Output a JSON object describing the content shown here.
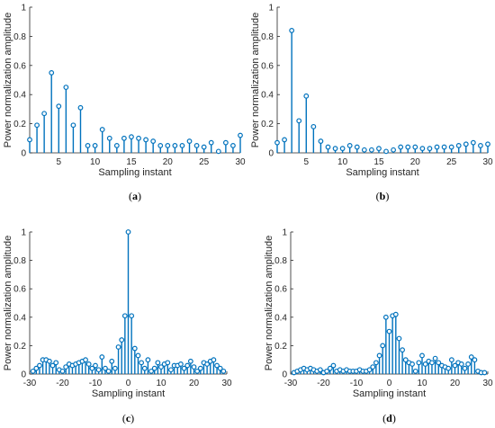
{
  "chart_data": [
    {
      "id": "a",
      "type": "stem",
      "caption": "(a)",
      "xlabel": "Sampling instant",
      "ylabel": "Power normalization amplitude",
      "xlim": [
        1,
        30
      ],
      "ylim": [
        0,
        1
      ],
      "xticks": [
        5,
        10,
        15,
        20,
        25,
        30
      ],
      "yticks": [
        0,
        0.2,
        0.4,
        0.6,
        0.8,
        1
      ],
      "ytick_labels": [
        "0",
        "0.2",
        "0.4",
        "0.6",
        "0.8",
        "1"
      ],
      "color": "#0072BD",
      "x": [
        1,
        2,
        3,
        4,
        5,
        6,
        7,
        8,
        9,
        10,
        11,
        12,
        13,
        14,
        15,
        16,
        17,
        18,
        19,
        20,
        21,
        22,
        23,
        24,
        25,
        26,
        27,
        28,
        29,
        30
      ],
      "y": [
        0.09,
        0.19,
        0.27,
        0.55,
        0.32,
        0.45,
        0.19,
        0.31,
        0.05,
        0.05,
        0.16,
        0.1,
        0.05,
        0.1,
        0.11,
        0.1,
        0.09,
        0.08,
        0.05,
        0.05,
        0.05,
        0.05,
        0.08,
        0.05,
        0.04,
        0.07,
        0.01,
        0.07,
        0.05,
        0.12
      ]
    },
    {
      "id": "b",
      "type": "stem",
      "caption": "(b)",
      "xlabel": "Sampling instant",
      "ylabel": "Power normalization amplitude",
      "xlim": [
        1,
        30
      ],
      "ylim": [
        0,
        1
      ],
      "xticks": [
        5,
        10,
        15,
        20,
        25,
        30
      ],
      "yticks": [
        0,
        0.2,
        0.4,
        0.6,
        0.8,
        1
      ],
      "ytick_labels": [
        "0",
        "0.2",
        "0.4",
        "0.6",
        "0.8",
        "1"
      ],
      "color": "#0072BD",
      "x": [
        1,
        2,
        3,
        4,
        5,
        6,
        7,
        8,
        9,
        10,
        11,
        12,
        13,
        14,
        15,
        16,
        17,
        18,
        19,
        20,
        21,
        22,
        23,
        24,
        25,
        26,
        27,
        28,
        29,
        30
      ],
      "y": [
        0.07,
        0.09,
        0.84,
        0.22,
        0.39,
        0.18,
        0.08,
        0.04,
        0.03,
        0.03,
        0.05,
        0.04,
        0.02,
        0.02,
        0.03,
        0.01,
        0.02,
        0.04,
        0.04,
        0.04,
        0.03,
        0.03,
        0.04,
        0.04,
        0.04,
        0.05,
        0.06,
        0.07,
        0.05,
        0.06
      ]
    },
    {
      "id": "c",
      "type": "stem",
      "caption": "(c)",
      "xlabel": "Sampling instant",
      "ylabel": "Power normalization amplitude",
      "xlim": [
        -30,
        30
      ],
      "ylim": [
        0,
        1
      ],
      "xticks": [
        -30,
        -20,
        -10,
        0,
        10,
        20,
        30
      ],
      "yticks": [
        0,
        0.2,
        0.4,
        0.6,
        0.8,
        1
      ],
      "ytick_labels": [
        "0",
        "0.2",
        "0.4",
        "0.6",
        "0.8",
        "1"
      ],
      "color": "#0072BD",
      "x": [
        -29,
        -28,
        -27,
        -26,
        -25,
        -24,
        -23,
        -22,
        -21,
        -20,
        -19,
        -18,
        -17,
        -16,
        -15,
        -14,
        -13,
        -12,
        -11,
        -10,
        -9,
        -8,
        -7,
        -6,
        -5,
        -4,
        -3,
        -2,
        -1,
        0,
        1,
        2,
        3,
        4,
        5,
        6,
        7,
        8,
        9,
        10,
        11,
        12,
        13,
        14,
        15,
        16,
        17,
        18,
        19,
        20,
        21,
        22,
        23,
        24,
        25,
        26,
        27,
        28,
        29
      ],
      "y": [
        0.02,
        0.04,
        0.06,
        0.1,
        0.1,
        0.09,
        0.06,
        0.08,
        0.03,
        0.02,
        0.05,
        0.07,
        0.06,
        0.07,
        0.08,
        0.09,
        0.1,
        0.07,
        0.04,
        0.06,
        0.03,
        0.12,
        0.04,
        0.02,
        0.09,
        0.04,
        0.19,
        0.24,
        0.41,
        1.0,
        0.41,
        0.18,
        0.13,
        0.08,
        0.04,
        0.1,
        0.02,
        0.04,
        0.08,
        0.05,
        0.07,
        0.08,
        0.03,
        0.06,
        0.06,
        0.07,
        0.04,
        0.06,
        0.09,
        0.05,
        0.02,
        0.04,
        0.08,
        0.07,
        0.09,
        0.1,
        0.06,
        0.04,
        0.02
      ]
    },
    {
      "id": "d",
      "type": "stem",
      "caption": "(d)",
      "xlabel": "Sampling instant",
      "ylabel": "Power normalization amplitude",
      "xlim": [
        -30,
        30
      ],
      "ylim": [
        0,
        1
      ],
      "xticks": [
        -30,
        -20,
        -10,
        0,
        10,
        20,
        30
      ],
      "yticks": [
        0,
        0.2,
        0.4,
        0.6,
        0.8,
        1
      ],
      "ytick_labels": [
        "0",
        "0.2",
        "0.4",
        "0.6",
        "0.8",
        "1"
      ],
      "color": "#0072BD",
      "x": [
        -29,
        -28,
        -27,
        -26,
        -25,
        -24,
        -23,
        -22,
        -21,
        -20,
        -19,
        -18,
        -17,
        -16,
        -15,
        -14,
        -13,
        -12,
        -11,
        -10,
        -9,
        -8,
        -7,
        -6,
        -5,
        -4,
        -3,
        -2,
        -1,
        0,
        1,
        2,
        3,
        4,
        5,
        6,
        7,
        8,
        9,
        10,
        11,
        12,
        13,
        14,
        15,
        16,
        17,
        18,
        19,
        20,
        21,
        22,
        23,
        24,
        25,
        26,
        27,
        28,
        29
      ],
      "y": [
        0.01,
        0.02,
        0.03,
        0.04,
        0.03,
        0.04,
        0.03,
        0.02,
        0.03,
        0.01,
        0.02,
        0.04,
        0.06,
        0.02,
        0.03,
        0.02,
        0.03,
        0.02,
        0.02,
        0.02,
        0.03,
        0.02,
        0.02,
        0.03,
        0.05,
        0.08,
        0.13,
        0.2,
        0.4,
        0.3,
        0.41,
        0.42,
        0.25,
        0.17,
        0.1,
        0.08,
        0.07,
        0.02,
        0.08,
        0.13,
        0.07,
        0.09,
        0.08,
        0.11,
        0.08,
        0.06,
        0.05,
        0.04,
        0.1,
        0.06,
        0.08,
        0.07,
        0.04,
        0.07,
        0.12,
        0.1,
        0.02,
        0.01,
        0.01
      ]
    }
  ]
}
